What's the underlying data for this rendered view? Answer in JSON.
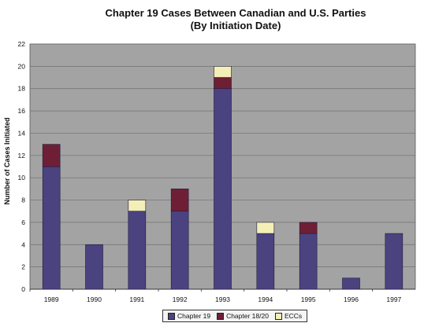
{
  "chart_data": {
    "type": "bar",
    "stacked": true,
    "title": "Chapter 19 Cases Between Canadian and U.S. Parties",
    "subtitle": "(By Initiation Date)",
    "xlabel": "",
    "ylabel": "Number of Cases Initiated",
    "ylim": [
      0,
      22
    ],
    "yticks": [
      0,
      2,
      4,
      6,
      8,
      10,
      12,
      14,
      16,
      18,
      20,
      22
    ],
    "grid": true,
    "legend_position": "bottom",
    "categories": [
      "1989",
      "1990",
      "1991",
      "1992",
      "1993",
      "1994",
      "1995",
      "1996",
      "1997"
    ],
    "series": [
      {
        "name": "Chapter 19",
        "color": "#4b4380",
        "values": [
          11,
          4,
          7,
          7,
          18,
          5,
          5,
          1,
          5
        ]
      },
      {
        "name": "Chapter 18/20",
        "color": "#6e1f36",
        "values": [
          2,
          0,
          0,
          2,
          1,
          0,
          1,
          0,
          0
        ]
      },
      {
        "name": "ECCs",
        "color": "#f3efb6",
        "values": [
          0,
          0,
          1,
          0,
          1,
          1,
          0,
          0,
          0
        ]
      }
    ]
  }
}
